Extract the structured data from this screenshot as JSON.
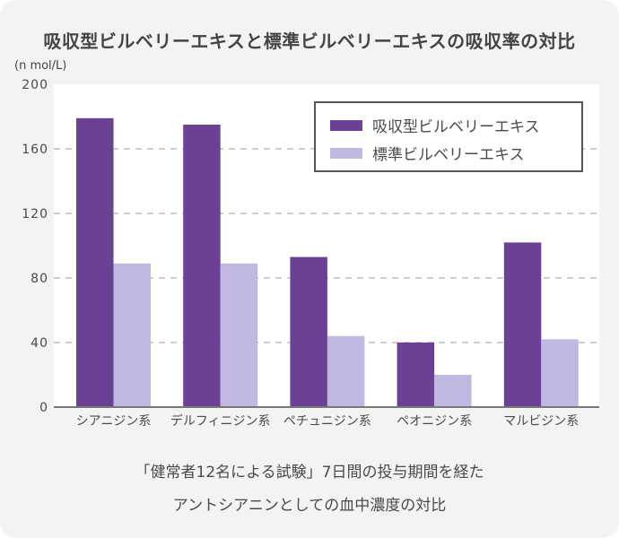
{
  "chart_data": {
    "type": "bar",
    "title": "吸収型ビルベリーエキスと標準ビルベリーエキスの吸収率の対比",
    "ylabel": "(n mol/L)",
    "xlabel": "",
    "ylim": [
      0,
      200
    ],
    "yticks": [
      0,
      40,
      80,
      120,
      160,
      200
    ],
    "grid": true,
    "legend_position": "top-right",
    "categories": [
      "シアニジン系",
      "デルフィニジン系",
      "ペチュニジン系",
      "ペオニジン系",
      "マルビジン系"
    ],
    "series": [
      {
        "name": "吸収型ビルベリーエキス",
        "color": "#6a4195",
        "values": [
          179,
          175,
          93,
          40,
          102
        ]
      },
      {
        "name": "標準ビルベリーエキス",
        "color": "#c0b8e0",
        "values": [
          89,
          89,
          44,
          20,
          42
        ]
      }
    ]
  },
  "caption": {
    "line1": "「健常者12名による試験」7日間の投与期間を経た",
    "line2": "アントシアニンとしての血中濃度の対比"
  }
}
